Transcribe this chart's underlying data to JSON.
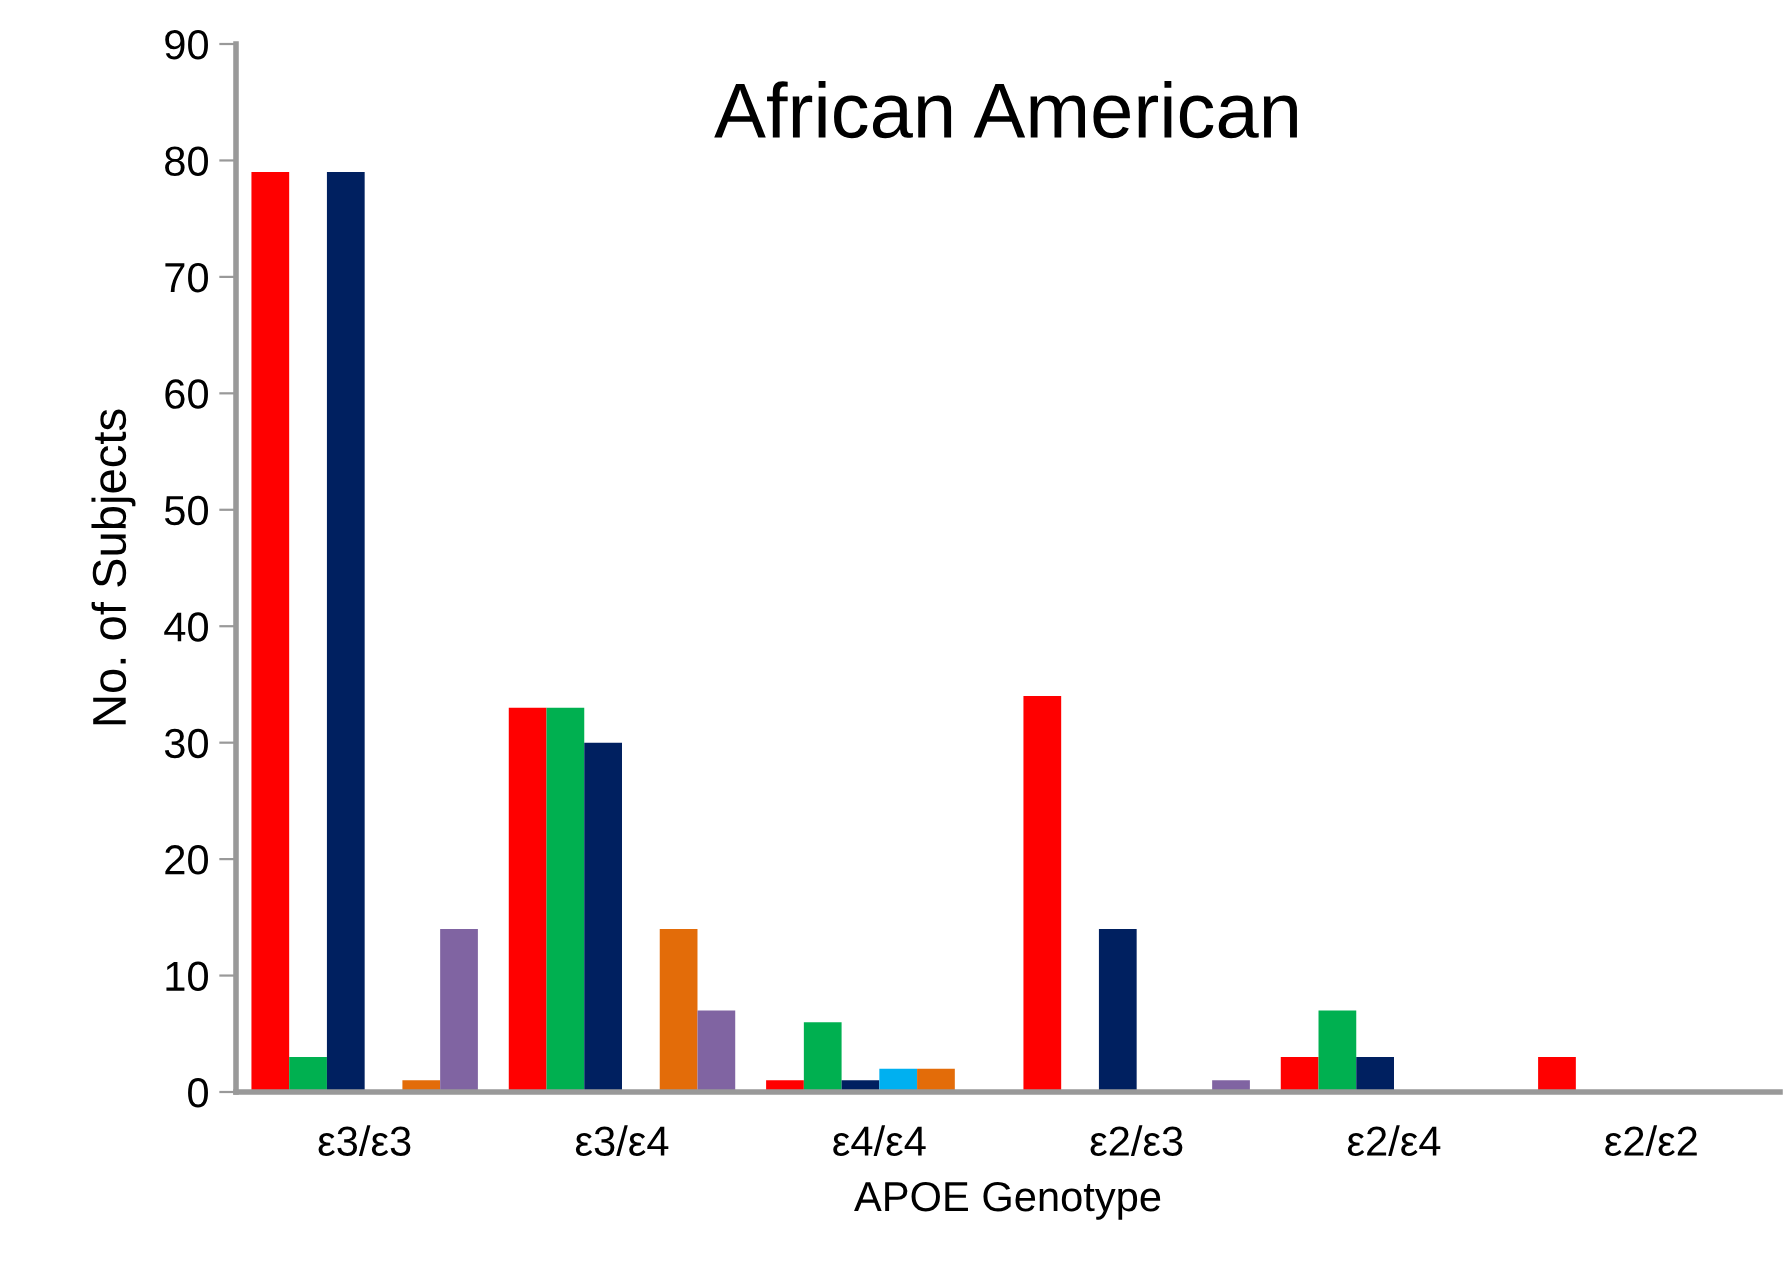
{
  "chart_data": {
    "type": "bar",
    "title": "African American",
    "xlabel": "APOE Genotype",
    "ylabel": "No. of Subjects",
    "categories": [
      "ε3/ε3",
      "ε3/ε4",
      "ε4/ε4",
      "ε2/ε3",
      "ε2/ε4",
      "ε2/ε2"
    ],
    "series": [
      {
        "color": "#ff0000",
        "values": [
          79,
          33,
          1,
          34,
          3,
          3
        ]
      },
      {
        "color": "#00b050",
        "values": [
          3,
          33,
          6,
          0,
          7,
          0
        ]
      },
      {
        "color": "#002060",
        "values": [
          79,
          30,
          1,
          14,
          3,
          0
        ]
      },
      {
        "color": "#00b0f0",
        "values": [
          0,
          0,
          2,
          0,
          0,
          0
        ]
      },
      {
        "color": "#e36c09",
        "values": [
          1,
          14,
          2,
          0,
          0,
          0
        ]
      },
      {
        "color": "#8064a2",
        "values": [
          14,
          7,
          0,
          1,
          0,
          0
        ]
      }
    ],
    "ylim": [
      0,
      90
    ],
    "yticks": [
      0,
      10,
      20,
      30,
      40,
      50,
      60,
      70,
      80,
      90
    ],
    "grid": false,
    "legend": false
  }
}
